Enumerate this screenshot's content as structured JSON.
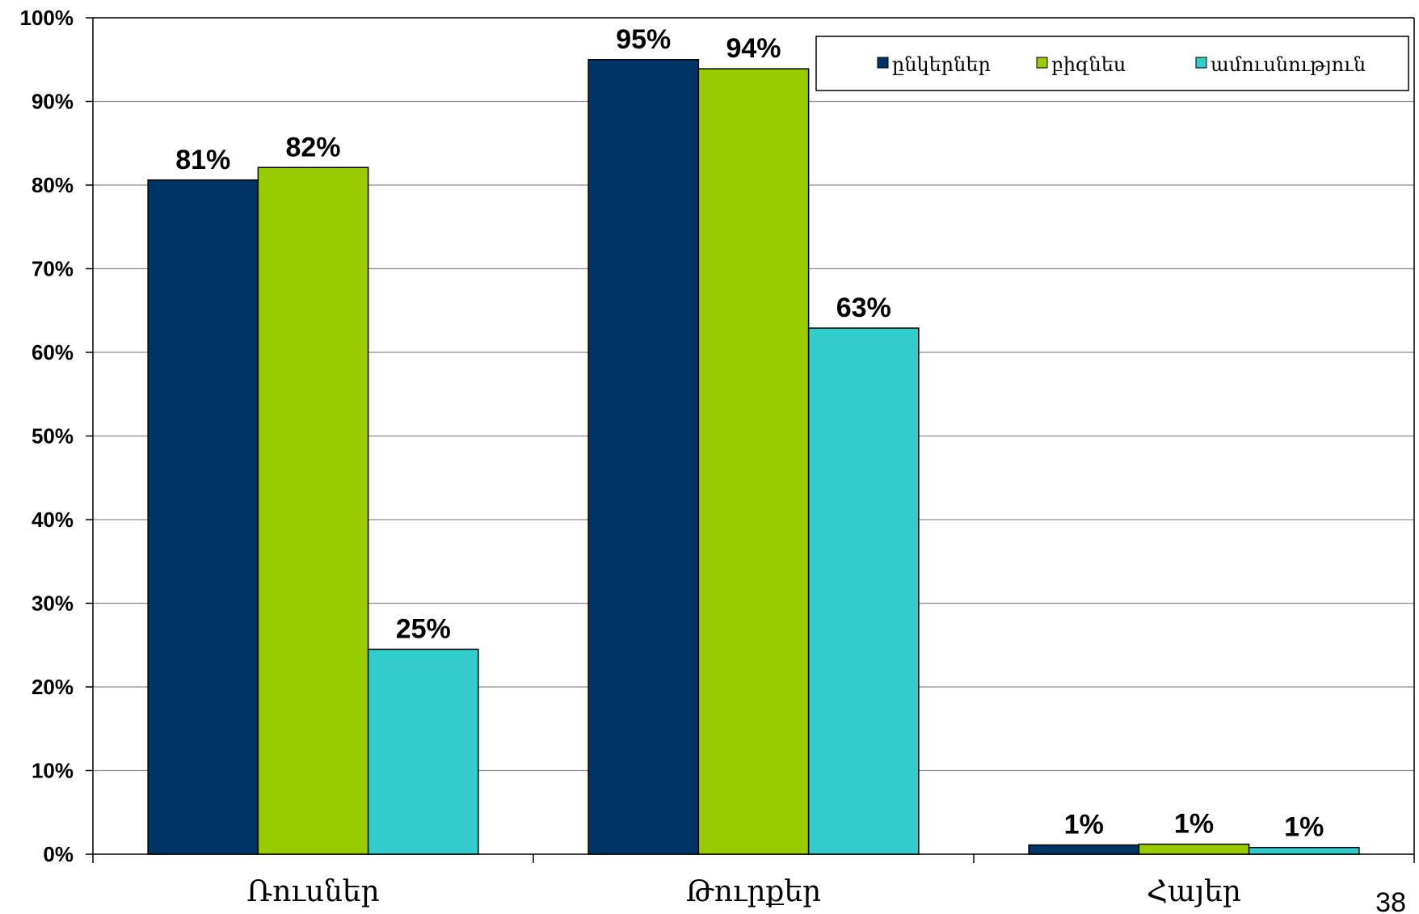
{
  "page_number": "38",
  "chart_data": {
    "type": "bar",
    "title": "",
    "xlabel": "",
    "ylabel": "",
    "ylim": [
      0,
      100
    ],
    "y_ticks": [
      "0%",
      "10%",
      "20%",
      "30%",
      "40%",
      "50%",
      "60%",
      "70%",
      "80%",
      "90%",
      "100%"
    ],
    "grid": true,
    "legend_position": "top-right",
    "categories": [
      "Ռուսներ",
      "Թուրքեր",
      "Հայեր"
    ],
    "series": [
      {
        "name": "ընկերներ",
        "color": "#003366",
        "values": [
          80.6,
          95.0,
          1.1
        ],
        "labels": [
          "81%",
          "95%",
          "1%"
        ]
      },
      {
        "name": "բիզնես",
        "color": "#99CC00",
        "values": [
          82.1,
          93.9,
          1.2
        ],
        "labels": [
          "82%",
          "94%",
          "1%"
        ]
      },
      {
        "name": "ամուսնություն",
        "color": "#33CCCC",
        "values": [
          24.5,
          62.9,
          0.8
        ],
        "labels": [
          "25%",
          "63%",
          "1%"
        ]
      }
    ]
  }
}
